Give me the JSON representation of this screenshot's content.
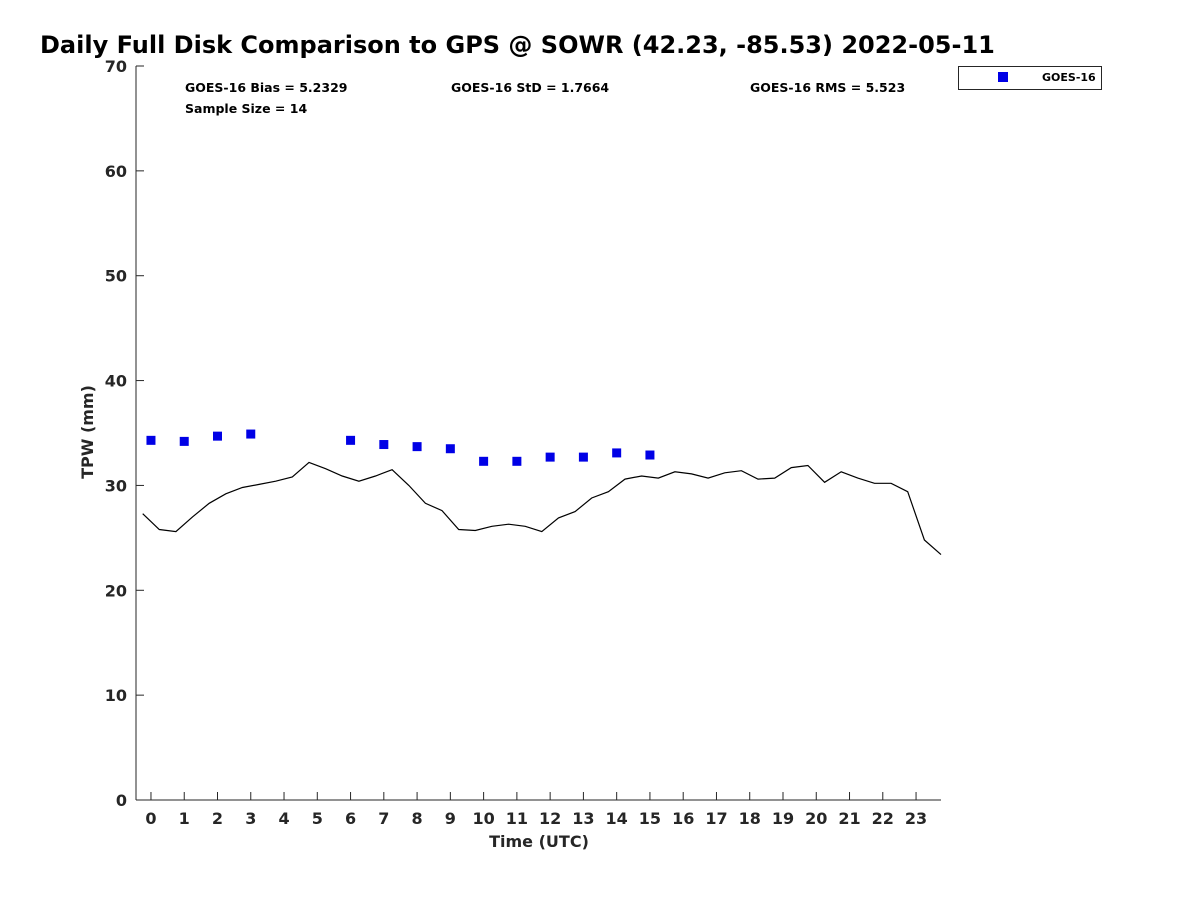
{
  "chart_data": {
    "type": "scatter",
    "title": "Daily Full Disk Comparison to GPS @ SOWR (42.23, -85.53) 2022-05-11",
    "xlabel": "Time (UTC)",
    "ylabel": "TPW (mm)",
    "xlim": [
      -0.45,
      23.75
    ],
    "ylim": [
      0,
      70
    ],
    "xticks": [
      0,
      1,
      2,
      3,
      4,
      5,
      6,
      7,
      8,
      9,
      10,
      11,
      12,
      13,
      14,
      15,
      16,
      17,
      18,
      19,
      20,
      21,
      22,
      23
    ],
    "xtick_labels": [
      "0",
      "1",
      "2",
      "3",
      "4",
      "5",
      "6",
      "7",
      "8",
      "9",
      "10",
      "11",
      "12",
      "13",
      "14",
      "15",
      "16",
      "17",
      "18",
      "19",
      "20",
      "21",
      "22",
      "23"
    ],
    "yticks": [
      0,
      10,
      20,
      30,
      40,
      50,
      60,
      70
    ],
    "ytick_labels": [
      "0",
      "10",
      "20",
      "30",
      "40",
      "50",
      "60",
      "70"
    ],
    "legend_position": "top-right outside",
    "series": [
      {
        "name": "GOES-16",
        "style": "markers",
        "color": "#0000e6",
        "x": [
          0,
          1,
          2,
          3,
          6,
          7,
          8,
          9,
          10,
          11,
          12,
          13,
          14,
          15
        ],
        "y": [
          34.3,
          34.2,
          34.7,
          34.9,
          34.3,
          33.9,
          33.7,
          33.5,
          32.3,
          32.3,
          32.7,
          32.7,
          33.1,
          32.9
        ]
      },
      {
        "name": "GPS",
        "style": "line",
        "color": "#000000",
        "x": [
          -0.25,
          0.25,
          0.75,
          1.25,
          1.75,
          2.25,
          2.75,
          3.25,
          3.75,
          4.25,
          4.75,
          5.25,
          5.75,
          6.25,
          6.75,
          7.25,
          7.75,
          8.25,
          8.75,
          9.25,
          9.75,
          10.25,
          10.75,
          11.25,
          11.75,
          12.25,
          12.75,
          13.25,
          13.75,
          14.25,
          14.75,
          15.25,
          15.75,
          16.25,
          16.75,
          17.25,
          17.75,
          18.25,
          18.75,
          19.25,
          19.75,
          20.25,
          20.75,
          21.25,
          21.75,
          22.25,
          22.75,
          23.25,
          23.75
        ],
        "y": [
          27.3,
          25.8,
          25.6,
          27.0,
          28.3,
          29.2,
          29.8,
          30.1,
          30.4,
          30.8,
          32.2,
          31.6,
          30.9,
          30.4,
          30.9,
          31.5,
          30.0,
          28.3,
          27.6,
          25.8,
          25.7,
          26.1,
          26.3,
          26.1,
          25.6,
          26.9,
          27.5,
          28.8,
          29.4,
          30.6,
          30.9,
          30.7,
          31.3,
          31.1,
          30.7,
          31.2,
          31.4,
          30.6,
          30.7,
          31.7,
          31.9,
          30.3,
          31.3,
          30.7,
          30.2,
          30.2,
          29.4,
          24.8,
          23.4
        ]
      }
    ],
    "annotations": {
      "bias": "GOES-16 Bias = 5.2329",
      "std": "GOES-16 StD = 1.7664",
      "rms": "GOES-16 RMS = 5.523",
      "sample_size": "Sample Size = 14"
    },
    "legend": [
      {
        "label": "GOES-16",
        "color": "#0000e6",
        "marker": "square"
      }
    ]
  }
}
